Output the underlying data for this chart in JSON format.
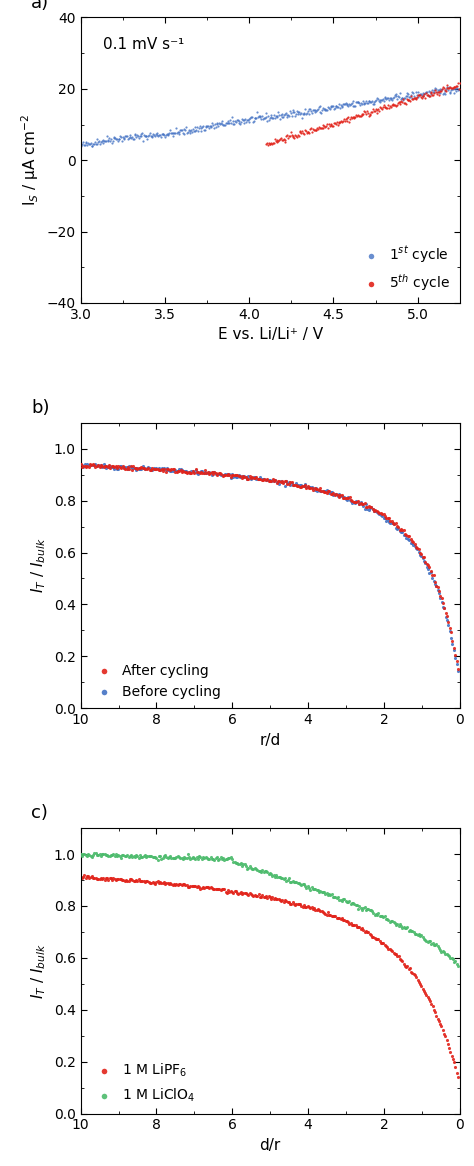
{
  "panel_a": {
    "label": "a)",
    "annotation": "0.1 mV s⁻¹",
    "xlabel": "E vs. Li/Li⁺ / V",
    "ylabel": "I$_S$ / μA cm$^{-2}$",
    "xlim": [
      3.0,
      5.25
    ],
    "ylim": [
      -40,
      40
    ],
    "xticks": [
      3.0,
      3.5,
      4.0,
      4.5,
      5.0
    ],
    "yticks": [
      -40,
      -20,
      0,
      20,
      40
    ],
    "cycle1_color": "#4472C4",
    "cycle5_color": "#E2231A"
  },
  "panel_b": {
    "label": "b)",
    "xlabel": "r/d",
    "xlim": [
      10,
      0
    ],
    "ylim": [
      0.0,
      1.1
    ],
    "yticks": [
      0.0,
      0.2,
      0.4,
      0.6,
      0.8,
      1.0
    ],
    "after_color": "#E2231A",
    "before_color": "#4472C4",
    "legend_after": "After cycling",
    "legend_before": "Before cycling"
  },
  "panel_c": {
    "label": "c)",
    "xlabel": "d/r",
    "xlim": [
      10,
      0
    ],
    "ylim": [
      0.0,
      1.1
    ],
    "yticks": [
      0.0,
      0.2,
      0.4,
      0.6,
      0.8,
      1.0
    ],
    "lipf6_color": "#E2231A",
    "liclo4_color": "#4CBB6C",
    "legend_lipf6": "1 M LiPF$_6$",
    "legend_liclo4": "1 M LiClO$_4$"
  },
  "background_color": "#FFFFFF",
  "tick_fontsize": 10,
  "label_fontsize": 11,
  "annotation_fontsize": 11,
  "legend_fontsize": 10,
  "panel_label_fontsize": 13
}
